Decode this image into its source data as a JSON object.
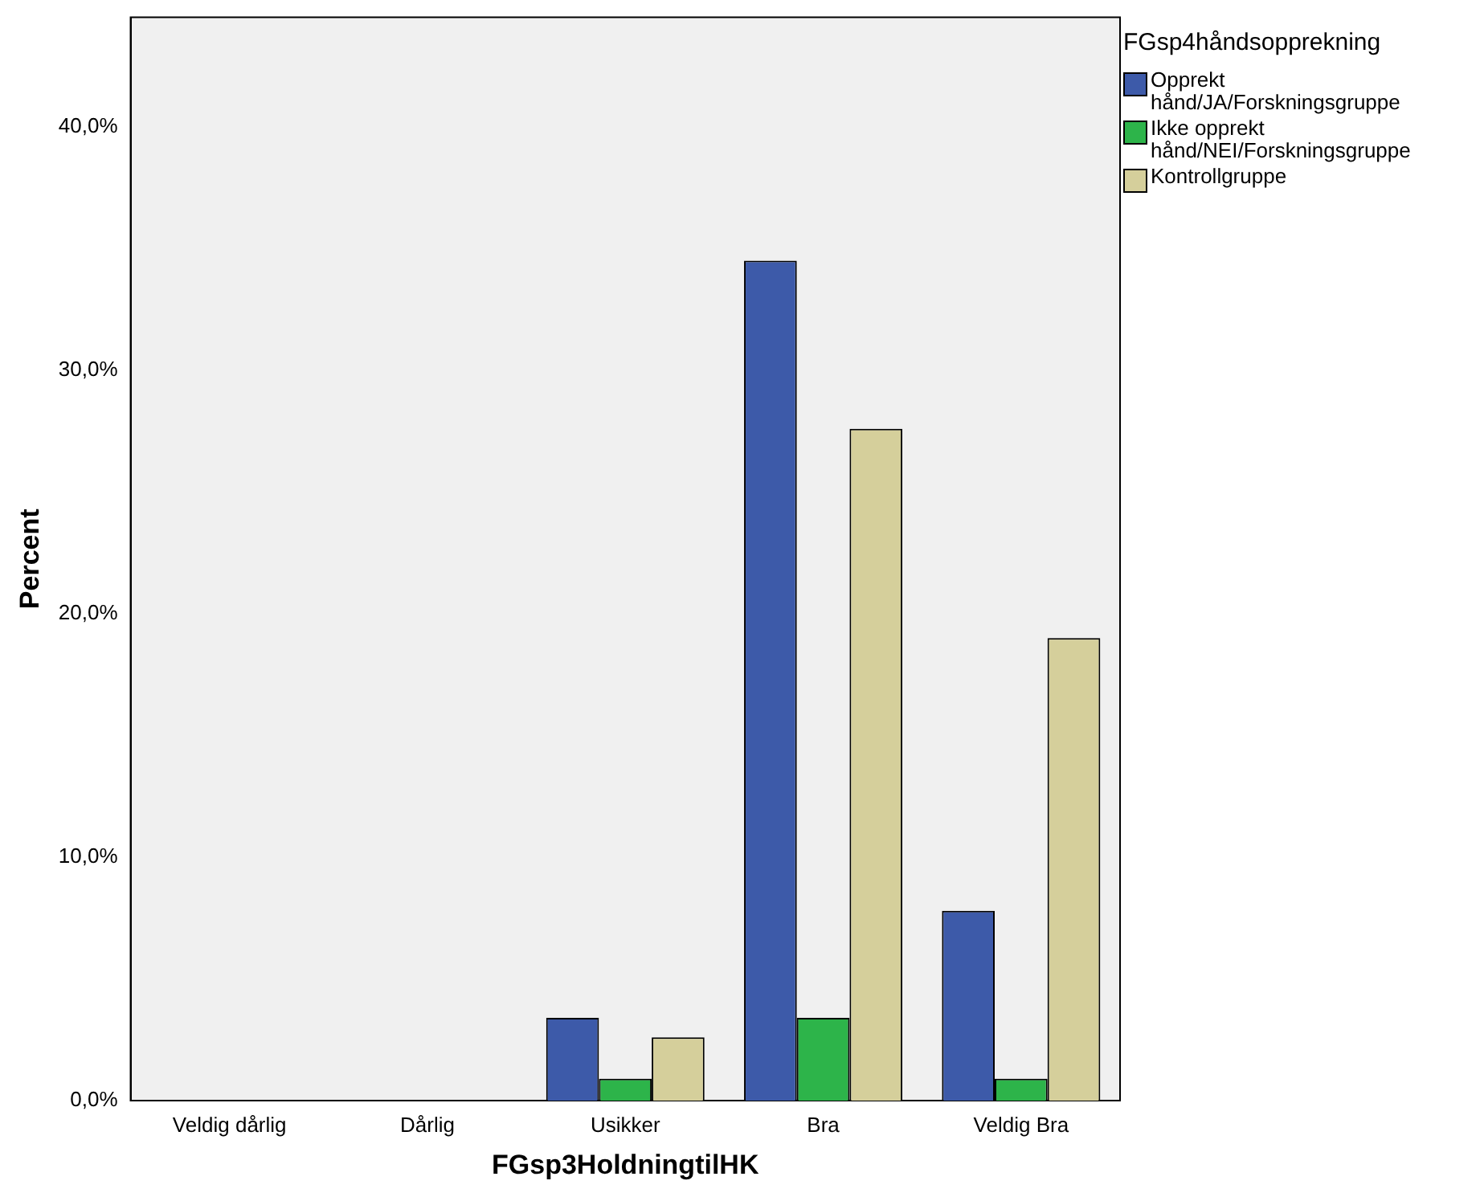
{
  "chart_data": {
    "type": "bar",
    "xlabel": "FGsp3HoldningtilHK",
    "ylabel": "Percent",
    "legend_title": "FGsp4håndsopprekning",
    "legend": "top right",
    "grid": false,
    "categories": [
      "Veldig dårlig",
      "Dårlig",
      "Usikker",
      "Bra",
      "Veldig Bra"
    ],
    "series": [
      {
        "name": "Opprekt hånd/JA/Forskningsgruppe",
        "color": "#3d5aa9",
        "values": [
          0,
          0,
          3.4,
          34.5,
          7.8
        ]
      },
      {
        "name": "Ikke opprekt hånd/NEI/Forskningsgruppe",
        "color": "#2db44a",
        "values": [
          0,
          0,
          0.9,
          3.4,
          0.9
        ]
      },
      {
        "name": "Kontrollgruppe",
        "color": "#d5cf9b",
        "values": [
          0,
          0,
          2.6,
          27.6,
          19.0
        ]
      }
    ],
    "ylim": [
      0,
      44.5
    ],
    "yticks": [
      {
        "value": 0,
        "label": "0,0%"
      },
      {
        "value": 10,
        "label": "10,0%"
      },
      {
        "value": 20,
        "label": "20,0%"
      },
      {
        "value": 30,
        "label": "30,0%"
      },
      {
        "value": 40,
        "label": "40,0%"
      }
    ]
  }
}
